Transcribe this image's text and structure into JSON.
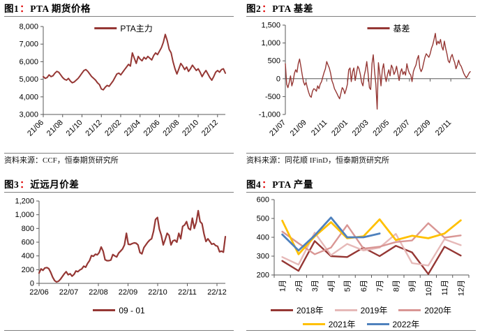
{
  "panels": [
    {
      "title_no": "图1",
      "colon": "：",
      "title": "PTA 期货价格",
      "source": "资料来源：CCF，恒泰期货研究所"
    },
    {
      "title_no": "图2",
      "colon": "：",
      "title": "PTA 基差",
      "source": "资料来源：同花顺 IFinD，恒泰期货研究所"
    },
    {
      "title_no": "图3",
      "colon": "：",
      "title": "近远月价差"
    },
    {
      "title_no": "图4",
      "colon": "：",
      "title": "PTA 产量"
    }
  ],
  "colors": {
    "dark_red": "#953734",
    "accent_red": "#e00000",
    "rule_gray": "#7f7f7f",
    "axis_gray": "#595959",
    "pink_2019": "#e6b9b8",
    "rose_2020": "#d99694",
    "gold_2021": "#ffc000",
    "blue_2022": "#4f81bd"
  },
  "chart_data": [
    {
      "type": "line",
      "title": "PTA 期货价格",
      "xlabel": "",
      "ylabel": "",
      "ylim": [
        3000,
        8000
      ],
      "y_step": 1000,
      "grid": false,
      "legend_position": "top-center",
      "x_tick_labels": [
        "21/06",
        "21/08",
        "21/10",
        "21/12",
        "22/02",
        "22/04",
        "22/06",
        "22/08",
        "22/10",
        "22/12"
      ],
      "x_label_rotation": -45,
      "x_tick_span": 0.957,
      "series": [
        {
          "name": "PTA主力",
          "color": "#953734",
          "values": [
            5150,
            5050,
            5100,
            5250,
            5150,
            5200,
            5350,
            5450,
            5400,
            5250,
            5100,
            5000,
            4950,
            5050,
            4900,
            4800,
            4850,
            4950,
            5050,
            5200,
            5350,
            5500,
            5550,
            5450,
            5300,
            5150,
            5050,
            4950,
            4800,
            4700,
            4450,
            4400,
            4550,
            4650,
            4600,
            4750,
            4900,
            5100,
            5300,
            5350,
            5250,
            5400,
            5550,
            5700,
            5850,
            5750,
            6500,
            6200,
            5900,
            6300,
            6150,
            6050,
            6250,
            6150,
            6300,
            6200,
            6100,
            6350,
            6500,
            6400,
            6600,
            6800,
            7100,
            7550,
            7200,
            6700,
            6500,
            6000,
            5600,
            5300,
            5600,
            5900,
            5750,
            5550,
            5700,
            5450,
            5600,
            5800,
            5650,
            5500,
            5600,
            5400,
            5150,
            5350,
            5500,
            5300,
            5100,
            4950,
            5150,
            5400,
            5500,
            5400,
            5550,
            5600,
            5350
          ]
        }
      ]
    },
    {
      "type": "line",
      "title": "PTA 基差",
      "xlabel": "",
      "ylabel": "",
      "ylim": [
        -1000,
        1500
      ],
      "y_step": 500,
      "grid": false,
      "axis_cross_zero": true,
      "legend_position": "top-center",
      "x_tick_labels": [
        "21/07",
        "21/09",
        "21/11",
        "22/01",
        "22/03",
        "22/05",
        "22/07",
        "22/09",
        "22/11"
      ],
      "x_label_rotation": -45,
      "x_tick_span": 0.895,
      "series": [
        {
          "name": "基差",
          "color": "#953734",
          "values": [
            420,
            -150,
            -250,
            -100,
            80,
            -200,
            -80,
            150,
            250,
            180,
            420,
            550,
            350,
            120,
            -80,
            -180,
            -100,
            -250,
            -380,
            -480,
            -520,
            -350,
            -280,
            -300,
            -350,
            -200,
            -280,
            -150,
            -80,
            50,
            180,
            280,
            480,
            380,
            300,
            150,
            -50,
            -150,
            -280,
            -350,
            -420,
            -500,
            -560,
            -400,
            -250,
            -300,
            -420,
            -300,
            -150,
            250,
            300,
            -80,
            200,
            300,
            -50,
            150,
            350,
            280,
            120,
            -100,
            -200,
            80,
            250,
            480,
            150,
            -250,
            -300,
            420,
            670,
            200,
            -150,
            -850,
            450,
            150,
            -200,
            250,
            420,
            100,
            -80,
            120,
            250,
            80,
            380,
            300,
            120,
            200,
            350,
            150,
            -50,
            180,
            280,
            120,
            200,
            100,
            420,
            250,
            150,
            100,
            -80,
            200,
            300,
            380,
            550,
            650,
            300,
            200,
            280,
            450,
            600,
            700,
            650,
            600,
            700,
            850,
            950,
            1100,
            1270,
            950,
            1050,
            980,
            1100,
            900,
            800,
            1050,
            850,
            700,
            500,
            450,
            600,
            680,
            550,
            450,
            280,
            380,
            520,
            400,
            350,
            250,
            150,
            80,
            30,
            80,
            150,
            200
          ]
        }
      ]
    },
    {
      "type": "line",
      "title": "近远月价差",
      "xlabel": "",
      "ylabel": "",
      "ylim": [
        0,
        1200
      ],
      "y_step": 200,
      "grid": false,
      "legend_position": "bottom",
      "legend_rows": [
        [
          0
        ]
      ],
      "x_tick_labels": [
        "22/06",
        "22/07",
        "22/08",
        "22/09",
        "22/10",
        "22/11",
        "22/12"
      ],
      "x_label_rotation": 0,
      "x_tick_span": 0.955,
      "series": [
        {
          "name": "09 - 01",
          "color": "#953734",
          "values": [
            150,
            210,
            190,
            225,
            230,
            215,
            160,
            90,
            40,
            20,
            30,
            60,
            100,
            140,
            170,
            125,
            140,
            105,
            130,
            180,
            170,
            195,
            210,
            250,
            235,
            290,
            330,
            405,
            395,
            425,
            415,
            450,
            530,
            470,
            345,
            330,
            330,
            340,
            420,
            400,
            385,
            440,
            470,
            500,
            560,
            730,
            570,
            565,
            580,
            590,
            585,
            560,
            450,
            430,
            520,
            560,
            600,
            630,
            650,
            760,
            930,
            960,
            790,
            700,
            560,
            640,
            730,
            700,
            560,
            620,
            630,
            600,
            730,
            650,
            830,
            850,
            900,
            800,
            780,
            950,
            800,
            890,
            1060,
            900,
            870,
            720,
            610,
            650,
            610,
            570,
            580,
            550,
            540,
            460,
            470,
            455,
            680
          ]
        }
      ]
    },
    {
      "type": "line",
      "title": "PTA 产量",
      "xlabel": "",
      "ylabel": "",
      "ylim": [
        200,
        600
      ],
      "y_step": 100,
      "grid": false,
      "legend_position": "bottom",
      "legend_rows": [
        [
          0,
          1,
          2
        ],
        [
          3,
          4
        ]
      ],
      "x_tick_labels": [
        "1月",
        "2月",
        "3月",
        "4月",
        "5月",
        "6月",
        "7月",
        "8月",
        "9月",
        "10月",
        "11月",
        "12月"
      ],
      "x_label_rotation": -90,
      "x_tick_mode": "centered",
      "series": [
        {
          "name": "2018年",
          "color": "#953734",
          "values": [
            275,
            222,
            380,
            300,
            295,
            345,
            300,
            355,
            320,
            205,
            350,
            303
          ]
        },
        {
          "name": "2019年",
          "color": "#e6b9b8",
          "values": [
            295,
            255,
            425,
            305,
            365,
            330,
            345,
            418,
            263,
            250,
            390,
            358
          ]
        },
        {
          "name": "2020年",
          "color": "#d99694",
          "values": [
            430,
            368,
            310,
            345,
            465,
            340,
            350,
            375,
            383,
            475,
            398,
            410
          ]
        },
        {
          "name": "2021年",
          "color": "#ffc000",
          "values": [
            488,
            310,
            405,
            480,
            395,
            405,
            495,
            385,
            408,
            395,
            420,
            490
          ]
        },
        {
          "name": "2022年",
          "color": "#4f81bd",
          "values": [
            415,
            330,
            410,
            505,
            400,
            400,
            420
          ]
        }
      ]
    }
  ]
}
